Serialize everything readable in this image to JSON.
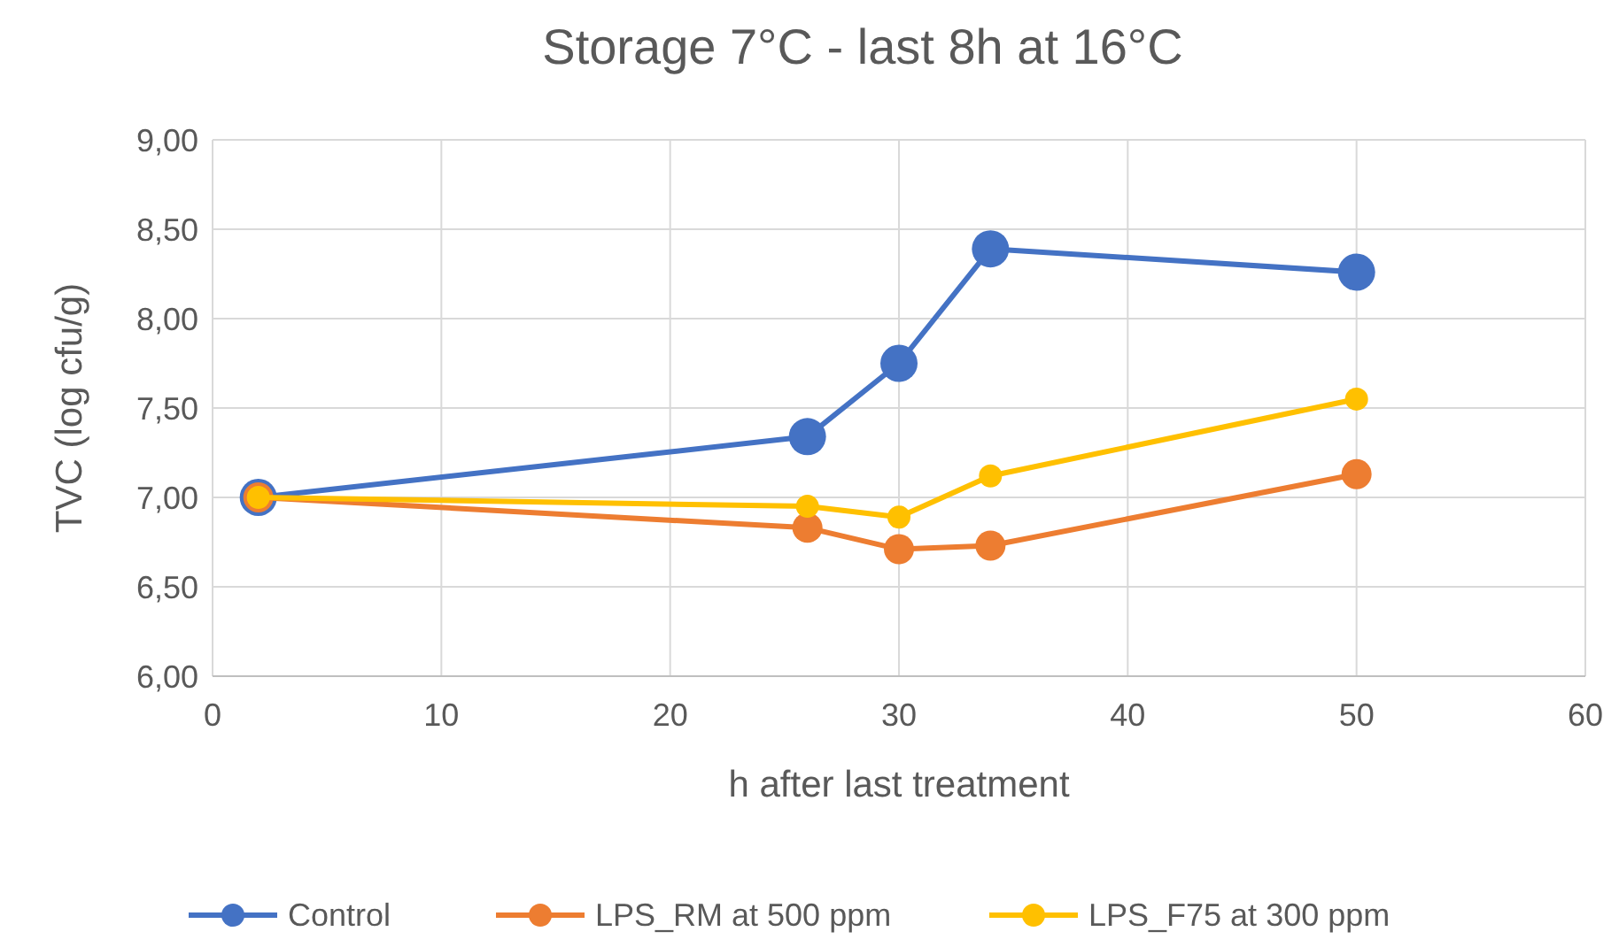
{
  "chart_data": {
    "type": "line",
    "title": "Storage 7°C - last 8h at 16°C",
    "xlabel": "h after last treatment",
    "ylabel": "TVC (log cfu/g)",
    "x": [
      2,
      26,
      30,
      34,
      50
    ],
    "series": [
      {
        "name": "Control",
        "color": "#4472c4",
        "values": [
          7.0,
          7.34,
          7.75,
          8.39,
          8.26
        ]
      },
      {
        "name": "LPS_RM at 500 ppm",
        "color": "#ed7d31",
        "values": [
          7.0,
          6.83,
          6.71,
          6.73,
          7.13
        ]
      },
      {
        "name": "LPS_F75 at 300 ppm",
        "color": "#ffc000",
        "values": [
          7.0,
          6.95,
          6.89,
          7.12,
          7.55
        ]
      }
    ],
    "xlim": [
      0,
      60
    ],
    "xticks": [
      0,
      10,
      20,
      30,
      40,
      50,
      60
    ],
    "ylim": [
      6,
      9
    ],
    "yticks": [
      {
        "value": 6,
        "label": "6,00"
      },
      {
        "value": 6.5,
        "label": "6,50"
      },
      {
        "value": 7,
        "label": "7,00"
      },
      {
        "value": 7.5,
        "label": "7,50"
      },
      {
        "value": 8,
        "label": "8,00"
      },
      {
        "value": 8.5,
        "label": "8,50"
      },
      {
        "value": 9,
        "label": "9,00"
      }
    ],
    "grid": true,
    "legend": "bottom",
    "marker": "circle",
    "line_style": "solid"
  }
}
